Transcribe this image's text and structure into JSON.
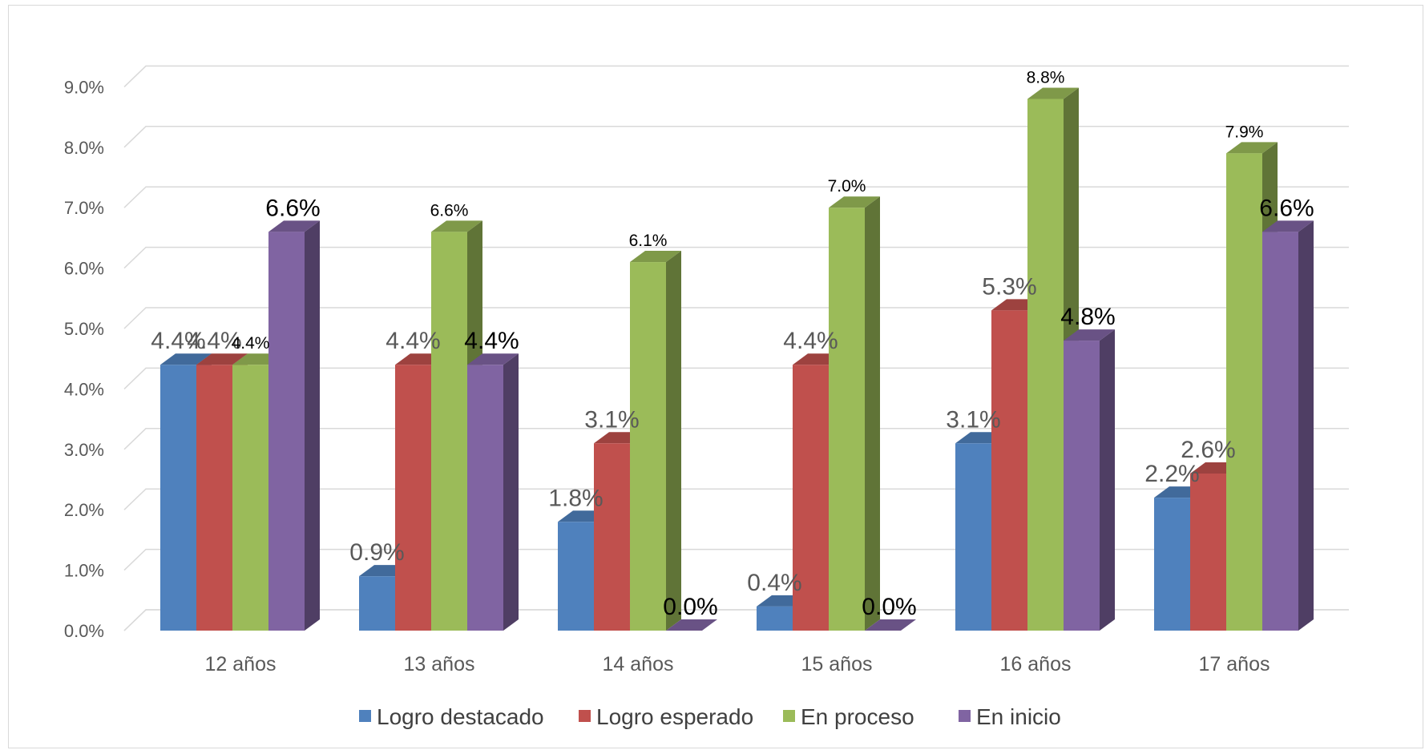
{
  "chart_data": {
    "type": "bar",
    "style": "3d-clustered-column",
    "categories": [
      "12 años",
      "13 años",
      "14 años",
      "15 años",
      "16 años",
      "17 años"
    ],
    "y_tick_labels": [
      "0.0%",
      "1.0%",
      "2.0%",
      "3.0%",
      "4.0%",
      "5.0%",
      "6.0%",
      "7.0%",
      "8.0%",
      "9.0%"
    ],
    "ylim": [
      0,
      9
    ],
    "grid": true,
    "legend_position": "bottom",
    "series": [
      {
        "name": "Logro destacado",
        "color": "#4f81bd",
        "values": [
          4.4,
          0.9,
          1.8,
          0.4,
          3.1,
          2.2
        ],
        "labels": [
          "4.4%",
          "0.9%",
          "1.8%",
          "0.4%",
          "3.1%",
          "2.2%"
        ]
      },
      {
        "name": "Logro esperado",
        "color": "#c0504d",
        "values": [
          4.4,
          4.4,
          3.1,
          4.4,
          5.3,
          2.6
        ],
        "labels": [
          "4.4%",
          "4.4%",
          "3.1%",
          "4.4%",
          "5.3%",
          "2.6%"
        ]
      },
      {
        "name": "En proceso",
        "color": "#9bbb59",
        "values": [
          4.4,
          6.6,
          6.1,
          7.0,
          8.8,
          7.9
        ],
        "labels": [
          "4.4%",
          "6.6%",
          "6.1%",
          "7.0%",
          "8.8%",
          "7.9%"
        ]
      },
      {
        "name": "En inicio",
        "color": "#8064a2",
        "values": [
          6.6,
          4.4,
          0.0,
          0.0,
          4.8,
          6.6
        ],
        "labels": [
          "6.6%",
          "4.4%",
          "0.0%",
          "0.0%",
          "4.8%",
          "6.6%"
        ]
      }
    ]
  }
}
